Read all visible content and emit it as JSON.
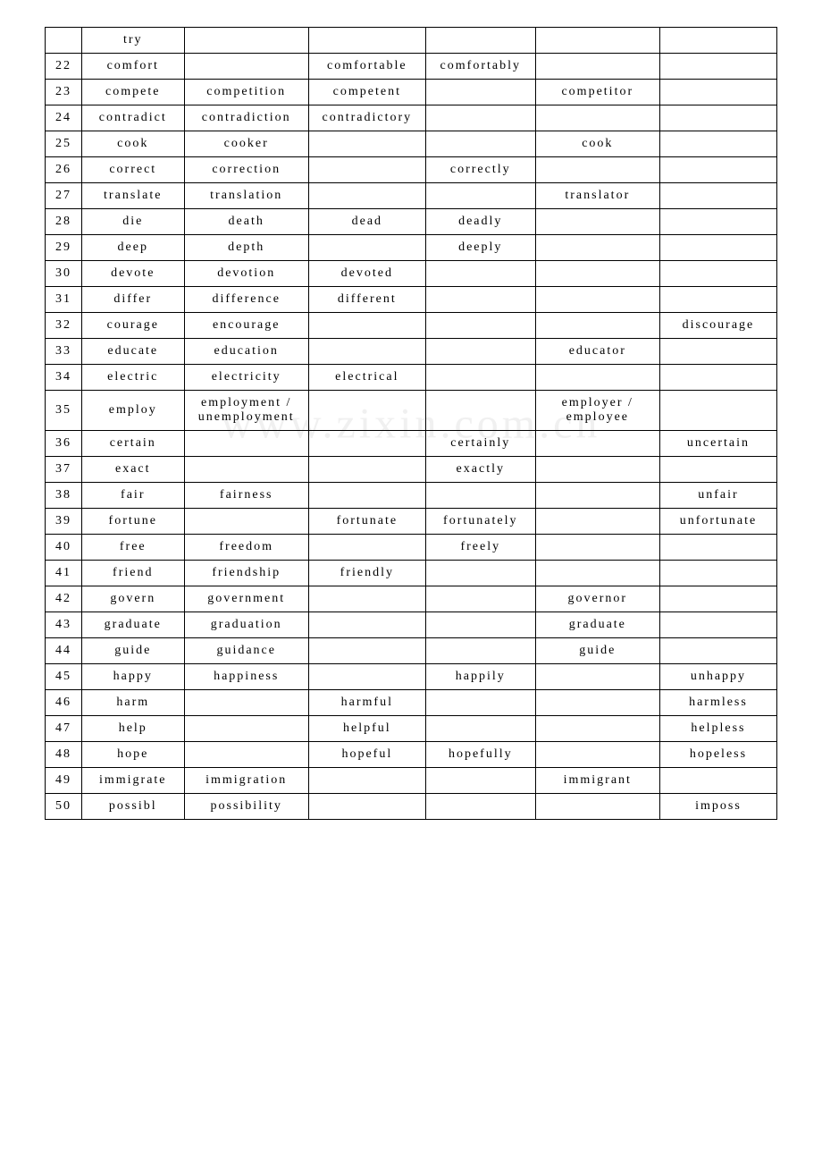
{
  "watermark": "www.zixin.com.cn",
  "rows": [
    {
      "n": "",
      "c": [
        "try",
        "",
        "",
        "",
        "",
        ""
      ]
    },
    {
      "n": "22",
      "c": [
        "comfort",
        "",
        "comfortable",
        "comfortably",
        "",
        ""
      ]
    },
    {
      "n": "23",
      "c": [
        "compete",
        "competition",
        "competent",
        "",
        "competitor",
        ""
      ]
    },
    {
      "n": "24",
      "c": [
        "contradict",
        "contradiction",
        "contradictory",
        "",
        "",
        ""
      ]
    },
    {
      "n": "25",
      "c": [
        "cook",
        "cooker",
        "",
        "",
        "cook",
        ""
      ]
    },
    {
      "n": "26",
      "c": [
        "correct",
        "correction",
        "",
        "correctly",
        "",
        ""
      ]
    },
    {
      "n": "27",
      "c": [
        "translate",
        "translation",
        "",
        "",
        "translator",
        ""
      ]
    },
    {
      "n": "28",
      "c": [
        "die",
        "death",
        "dead",
        "deadly",
        "",
        ""
      ]
    },
    {
      "n": "29",
      "c": [
        "deep",
        "depth",
        "",
        "deeply",
        "",
        ""
      ]
    },
    {
      "n": "30",
      "c": [
        "devote",
        "devotion",
        "devoted",
        "",
        "",
        ""
      ]
    },
    {
      "n": "31",
      "c": [
        "differ",
        "difference",
        "different",
        "",
        "",
        ""
      ]
    },
    {
      "n": "32",
      "c": [
        "courage",
        "encourage",
        "",
        "",
        "",
        "discourage"
      ]
    },
    {
      "n": "33",
      "c": [
        "educate",
        "education",
        "",
        "",
        "educator",
        ""
      ]
    },
    {
      "n": "34",
      "c": [
        "electric",
        "electricity",
        "electrical",
        "",
        "",
        ""
      ]
    },
    {
      "n": "35",
      "c": [
        "employ",
        "employment / unemployment",
        "",
        "",
        "employer / employee",
        ""
      ]
    },
    {
      "n": "36",
      "c": [
        "certain",
        "",
        "",
        "certainly",
        "",
        "uncertain"
      ]
    },
    {
      "n": "37",
      "c": [
        "exact",
        "",
        "",
        "exactly",
        "",
        ""
      ]
    },
    {
      "n": "38",
      "c": [
        "fair",
        "fairness",
        "",
        "",
        "",
        "unfair"
      ]
    },
    {
      "n": "39",
      "c": [
        "fortune",
        "",
        "fortunate",
        "fortunately",
        "",
        "unfortunate"
      ]
    },
    {
      "n": "40",
      "c": [
        "free",
        "freedom",
        "",
        "freely",
        "",
        ""
      ]
    },
    {
      "n": "41",
      "c": [
        "friend",
        "friendship",
        "friendly",
        "",
        "",
        ""
      ]
    },
    {
      "n": "42",
      "c": [
        "govern",
        "government",
        "",
        "",
        "governor",
        ""
      ]
    },
    {
      "n": "43",
      "c": [
        "graduate",
        "graduation",
        "",
        "",
        "graduate",
        ""
      ]
    },
    {
      "n": "44",
      "c": [
        "guide",
        "guidance",
        "",
        "",
        "guide",
        ""
      ]
    },
    {
      "n": "45",
      "c": [
        "happy",
        "happiness",
        "",
        "happily",
        "",
        "unhappy"
      ]
    },
    {
      "n": "46",
      "c": [
        "harm",
        "",
        "harmful",
        "",
        "",
        "harmless"
      ]
    },
    {
      "n": "47",
      "c": [
        "help",
        "",
        "helpful",
        "",
        "",
        "helpless"
      ]
    },
    {
      "n": "48",
      "c": [
        "hope",
        "",
        "hopeful",
        "hopefully",
        "",
        "hopeless"
      ]
    },
    {
      "n": "49",
      "c": [
        "immigrate",
        "immigration",
        "",
        "",
        "immigrant",
        ""
      ]
    },
    {
      "n": "50",
      "c": [
        "possibl",
        "possibility",
        "",
        "",
        "",
        "imposs"
      ]
    }
  ]
}
